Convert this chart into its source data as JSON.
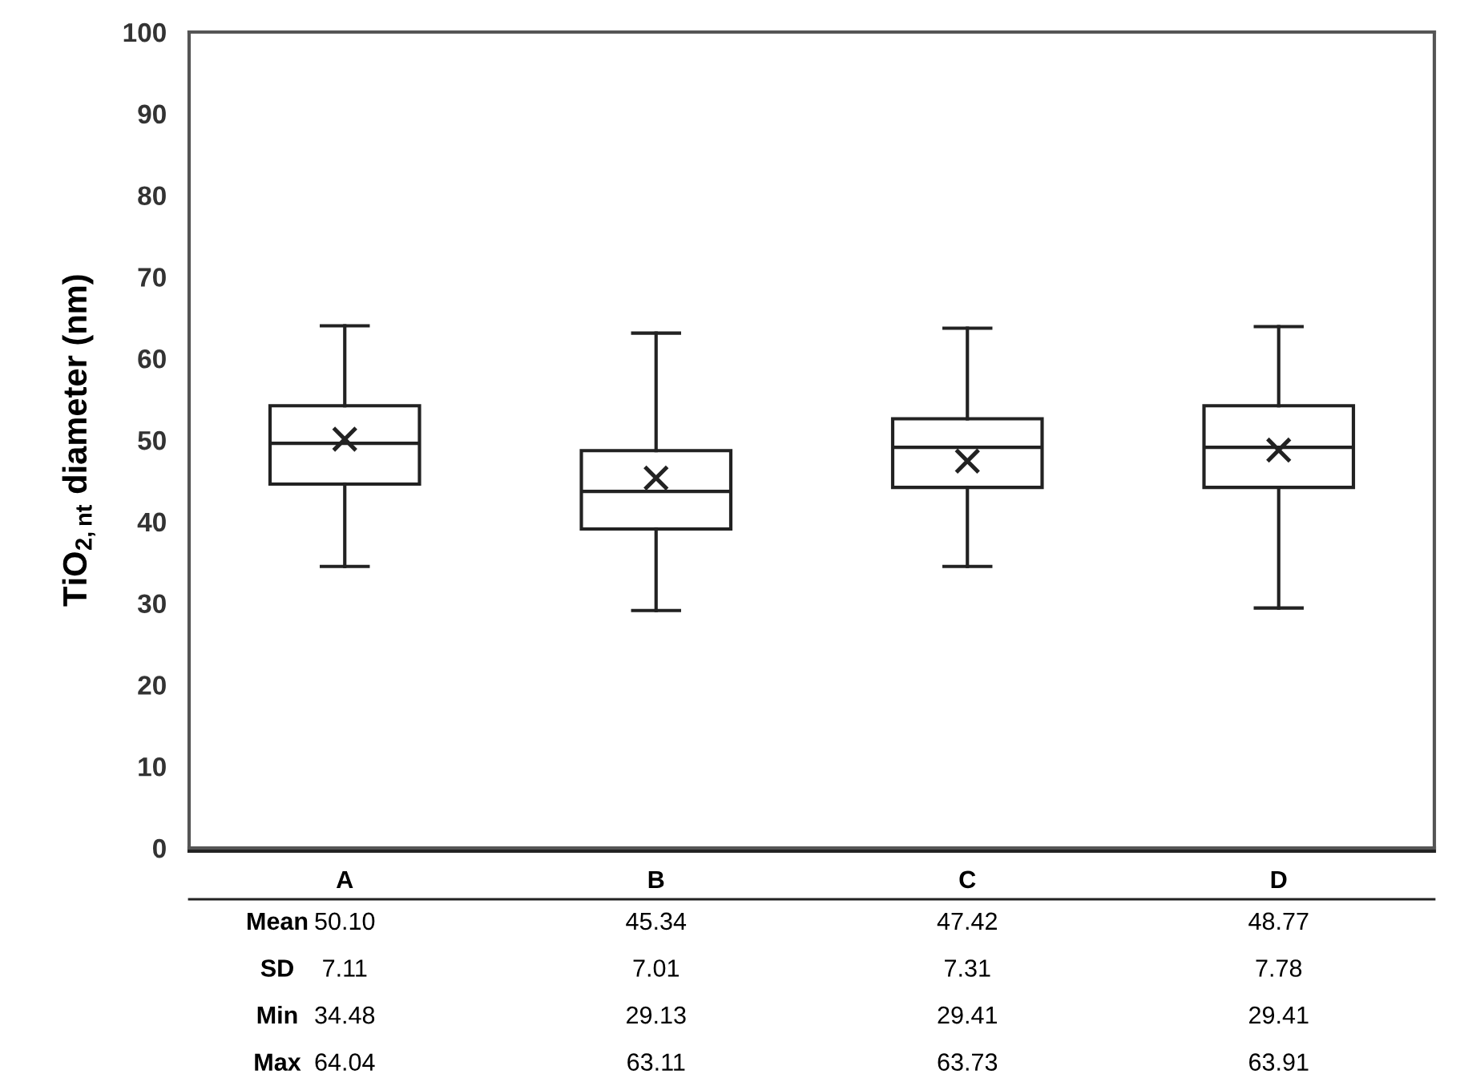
{
  "chart_data": {
    "type": "box",
    "ylabel": "TiO$_{2,nt}$ diameter (nm)",
    "categories": [
      "A",
      "B",
      "C",
      "D"
    ],
    "boxes": [
      {
        "low": 34.5,
        "q1": 44.6,
        "median": 49.6,
        "q3": 54.2,
        "high": 64.0,
        "mean": 50.1
      },
      {
        "low": 29.1,
        "q1": 39.1,
        "median": 43.7,
        "q3": 48.7,
        "high": 63.1,
        "mean": 45.34
      },
      {
        "low": 34.5,
        "q1": 44.2,
        "median": 49.1,
        "q3": 52.6,
        "high": 63.7,
        "mean": 47.42
      },
      {
        "low": 29.4,
        "q1": 44.2,
        "median": 49.1,
        "q3": 54.2,
        "high": 63.9,
        "mean": 48.77
      }
    ],
    "ylim": [
      0,
      100
    ],
    "yticks": [
      0,
      10,
      20,
      30,
      40,
      50,
      60,
      70,
      80,
      90,
      100
    ],
    "grid": false,
    "annotations": [
      "Mean",
      "50.10",
      "45.34",
      "47.42",
      "48.77",
      "SD",
      "7.11",
      "7.01",
      "7.31",
      "7.78",
      "Min",
      "34.48",
      "29.13",
      "29.41",
      "29.41",
      "Max",
      "64.04",
      "63.11",
      "63.73",
      "63.91"
    ]
  }
}
